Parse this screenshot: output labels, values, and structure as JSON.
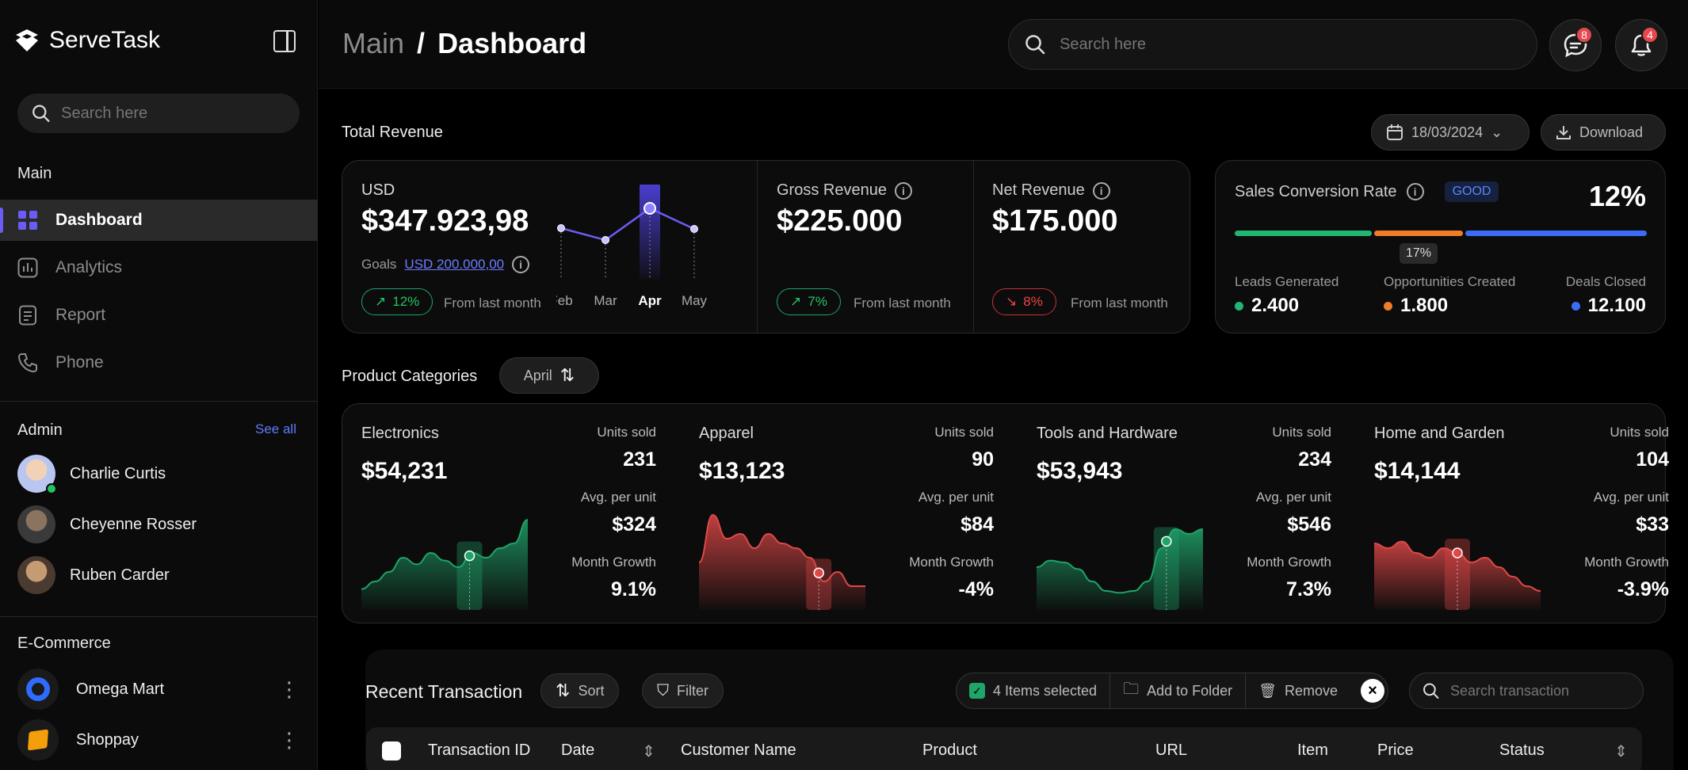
{
  "app": {
    "name": "ServeTask"
  },
  "sidebar": {
    "search_placeholder": "Search here",
    "main_title": "Main",
    "nav": [
      {
        "label": "Dashboard",
        "icon": "grid-icon",
        "active": true
      },
      {
        "label": "Analytics",
        "icon": "bar-chart-icon"
      },
      {
        "label": "Report",
        "icon": "document-icon"
      },
      {
        "label": "Phone",
        "icon": "phone-icon"
      }
    ],
    "admin_title": "Admin",
    "see_all": "See all",
    "admins": [
      {
        "name": "Charlie Curtis",
        "online": true
      },
      {
        "name": "Cheyenne Rosser"
      },
      {
        "name": "Ruben Carder"
      }
    ],
    "ecommerce_title": "E-Commerce",
    "shops": [
      {
        "name": "Omega Mart"
      },
      {
        "name": "Shoppay"
      }
    ]
  },
  "header": {
    "crumb_parent": "Main",
    "crumb_sep": "/",
    "crumb_current": "Dashboard",
    "search_placeholder": "Search here",
    "messages_badge": "8",
    "notifications_badge": "4"
  },
  "revenue": {
    "title": "Total Revenue",
    "date": "18/03/2024",
    "download": "Download",
    "currency": "USD",
    "amount": "$347.923,98",
    "goals_label": "Goals",
    "goals_value": "USD 200.000,00",
    "change": "12%",
    "from_last": "From last month",
    "gross_label": "Gross Revenue",
    "gross_value": "$225.000",
    "gross_change": "7%",
    "net_label": "Net Revenue",
    "net_value": "$175.000",
    "net_change": "8%"
  },
  "chart_data": {
    "type": "line",
    "categories": [
      "Feb",
      "Mar",
      "Apr",
      "May"
    ],
    "values": [
      55,
      40,
      80,
      54
    ],
    "highlight": "Apr",
    "ylim": [
      0,
      100
    ]
  },
  "conversion": {
    "label": "Sales Conversion Rate",
    "status": "GOOD",
    "value": "12%",
    "marker": "17%",
    "segments": [
      {
        "name": "Leads Generated",
        "value": "2.400",
        "color": "#22b573"
      },
      {
        "name": "Opportunities Created",
        "value": "1.800",
        "color": "#f07c28"
      },
      {
        "name": "Deals Closed",
        "value": "12.100",
        "color": "#3b6cf5"
      }
    ]
  },
  "categories": {
    "title": "Product Categories",
    "month": "April",
    "units_label": "Units sold",
    "avg_label": "Avg. per unit",
    "growth_label": "Month Growth",
    "items": [
      {
        "name": "Electronics",
        "revenue": "$54,231",
        "units": "231",
        "avg": "$324",
        "growth": "9.1%",
        "trend": "up",
        "color": "#1fa46a"
      },
      {
        "name": "Apparel",
        "revenue": "$13,123",
        "units": "90",
        "avg": "$84",
        "growth": "-4%",
        "trend": "down",
        "color": "#e04848"
      },
      {
        "name": "Tools and Hardware",
        "revenue": "$53,943",
        "units": "234",
        "avg": "$546",
        "growth": "7.3%",
        "trend": "up",
        "color": "#1fa46a"
      },
      {
        "name": "Home and Garden",
        "revenue": "$14,144",
        "units": "104",
        "avg": "$33",
        "growth": "-3.9%",
        "trend": "down",
        "color": "#e04848"
      }
    ]
  },
  "transactions": {
    "title": "Recent Transaction",
    "sort": "Sort",
    "filter": "Filter",
    "selected": "4 Items selected",
    "add_folder": "Add to Folder",
    "remove": "Remove",
    "search_placeholder": "Search transaction",
    "columns": [
      "Transaction ID",
      "Date",
      "Customer Name",
      "Product",
      "URL",
      "Item",
      "Price",
      "Status"
    ]
  }
}
